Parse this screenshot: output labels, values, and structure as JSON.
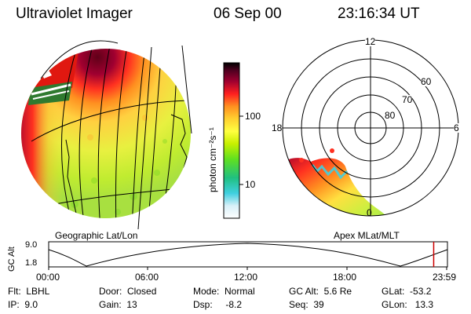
{
  "header": {
    "instrument": "Ultraviolet Imager",
    "date": "06 Sep 00",
    "time": "23:16:34 UT"
  },
  "colorbar": {
    "unit_label": "photon cm⁻²s⁻¹",
    "ticks": [
      "100",
      "10"
    ]
  },
  "left_panel": {
    "caption": "Geographic Lat/Lon"
  },
  "right_panel": {
    "caption": "Apex MLat/MLT",
    "mlt_labels": {
      "top": "12",
      "left": "18",
      "right": "6",
      "bottom": "0"
    },
    "lat_rings": [
      "60",
      "70",
      "80"
    ]
  },
  "altitude_strip": {
    "axis_label": "GC Alt",
    "y_ticks": [
      "9.0",
      "1.8"
    ],
    "x_ticks": [
      "00:00",
      "06:00",
      "12:00",
      "18:00",
      "23:59"
    ],
    "cursor_time_fraction": 0.9655
  },
  "info": {
    "flt": "Flt:  LBHL",
    "ip": "IP:  9.0",
    "door": "Door:  Closed",
    "gain": "Gain:  13",
    "mode": "Mode:  Normal",
    "dsp": "Dsp:     -8.2",
    "gcalt": "GC Alt:  5.6 Re",
    "seq": "Seq:  39",
    "glat": "GLat:  -53.2",
    "glon": "GLon:   13.3"
  },
  "colors": {
    "cursor": "#cc0000",
    "background": "#ffffff"
  }
}
